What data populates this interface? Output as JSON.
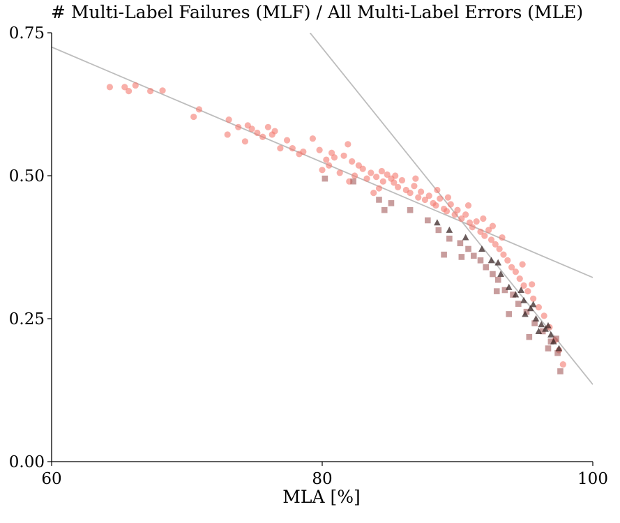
{
  "chart_data": {
    "type": "scatter",
    "title": "# Multi-Label Failures (MLF) / All Multi-Label Errors (MLE)",
    "xlabel": "MLA [%]",
    "ylabel": "",
    "xlim": [
      60,
      100
    ],
    "ylim": [
      0,
      0.75
    ],
    "xticks": [
      "60",
      "80",
      "100"
    ],
    "yticks": [
      "0.00",
      "0.25",
      "0.50",
      "0.75"
    ],
    "grid": false,
    "colors": {
      "circle": "#f47a70",
      "square": "#a35c5c",
      "triangle": "#3a2626",
      "fit_line": "#bdbdbd"
    },
    "fit_lines": [
      {
        "x": [
          60,
          100
        ],
        "y": [
          0.725,
          0.322
        ]
      },
      {
        "x": [
          79.1,
          100
        ],
        "y": [
          0.75,
          0.135
        ]
      }
    ],
    "series": [
      {
        "marker": "circle",
        "points": [
          [
            64.3,
            0.655
          ],
          [
            65.4,
            0.655
          ],
          [
            65.7,
            0.648
          ],
          [
            66.2,
            0.658
          ],
          [
            67.3,
            0.648
          ],
          [
            68.2,
            0.649
          ],
          [
            70.5,
            0.603
          ],
          [
            70.9,
            0.616
          ],
          [
            73.0,
            0.572
          ],
          [
            73.1,
            0.598
          ],
          [
            73.8,
            0.585
          ],
          [
            74.3,
            0.56
          ],
          [
            74.5,
            0.588
          ],
          [
            74.8,
            0.582
          ],
          [
            75.2,
            0.575
          ],
          [
            75.6,
            0.568
          ],
          [
            76.0,
            0.585
          ],
          [
            76.3,
            0.572
          ],
          [
            76.5,
            0.578
          ],
          [
            76.9,
            0.548
          ],
          [
            77.4,
            0.562
          ],
          [
            77.8,
            0.548
          ],
          [
            78.3,
            0.538
          ],
          [
            78.6,
            0.542
          ],
          [
            79.3,
            0.565
          ],
          [
            79.8,
            0.545
          ],
          [
            80.3,
            0.528
          ],
          [
            80.5,
            0.518
          ],
          [
            80.7,
            0.54
          ],
          [
            80.9,
            0.532
          ],
          [
            81.3,
            0.505
          ],
          [
            81.6,
            0.535
          ],
          [
            81.9,
            0.555
          ],
          [
            82.2,
            0.525
          ],
          [
            82.4,
            0.5
          ],
          [
            82.7,
            0.518
          ],
          [
            83.0,
            0.512
          ],
          [
            83.3,
            0.495
          ],
          [
            83.6,
            0.505
          ],
          [
            84.0,
            0.498
          ],
          [
            84.2,
            0.478
          ],
          [
            84.5,
            0.49
          ],
          [
            84.8,
            0.502
          ],
          [
            85.1,
            0.495
          ],
          [
            85.3,
            0.488
          ],
          [
            85.6,
            0.48
          ],
          [
            85.9,
            0.492
          ],
          [
            86.2,
            0.475
          ],
          [
            86.5,
            0.47
          ],
          [
            86.8,
            0.482
          ],
          [
            87.1,
            0.462
          ],
          [
            87.3,
            0.472
          ],
          [
            87.6,
            0.458
          ],
          [
            87.9,
            0.465
          ],
          [
            88.2,
            0.452
          ],
          [
            88.4,
            0.448
          ],
          [
            88.7,
            0.46
          ],
          [
            89.0,
            0.442
          ],
          [
            89.2,
            0.438
          ],
          [
            89.5,
            0.45
          ],
          [
            89.8,
            0.432
          ],
          [
            90.0,
            0.44
          ],
          [
            90.3,
            0.425
          ],
          [
            90.6,
            0.432
          ],
          [
            90.9,
            0.418
          ],
          [
            91.1,
            0.41
          ],
          [
            91.4,
            0.42
          ],
          [
            91.7,
            0.402
          ],
          [
            92.0,
            0.395
          ],
          [
            92.3,
            0.405
          ],
          [
            92.5,
            0.388
          ],
          [
            92.8,
            0.38
          ],
          [
            93.1,
            0.372
          ],
          [
            93.4,
            0.362
          ],
          [
            93.7,
            0.352
          ],
          [
            94.0,
            0.34
          ],
          [
            94.3,
            0.332
          ],
          [
            94.6,
            0.32
          ],
          [
            94.9,
            0.308
          ],
          [
            95.2,
            0.298
          ],
          [
            95.6,
            0.285
          ],
          [
            96.0,
            0.27
          ],
          [
            96.4,
            0.255
          ],
          [
            96.8,
            0.235
          ],
          [
            97.2,
            0.212
          ],
          [
            97.5,
            0.195
          ],
          [
            97.8,
            0.17
          ],
          [
            86.9,
            0.495
          ],
          [
            88.5,
            0.475
          ],
          [
            90.8,
            0.448
          ],
          [
            91.9,
            0.425
          ],
          [
            93.3,
            0.392
          ],
          [
            94.8,
            0.345
          ],
          [
            85.4,
            0.5
          ],
          [
            84.4,
            0.508
          ],
          [
            83.8,
            0.47
          ],
          [
            82.0,
            0.49
          ],
          [
            80.0,
            0.51
          ],
          [
            89.3,
            0.462
          ],
          [
            92.6,
            0.412
          ],
          [
            95.5,
            0.31
          ]
        ]
      },
      {
        "marker": "square",
        "points": [
          [
            80.2,
            0.495
          ],
          [
            82.3,
            0.49
          ],
          [
            84.2,
            0.458
          ],
          [
            84.6,
            0.44
          ],
          [
            85.1,
            0.452
          ],
          [
            86.5,
            0.44
          ],
          [
            87.8,
            0.422
          ],
          [
            88.6,
            0.405
          ],
          [
            89.4,
            0.39
          ],
          [
            90.2,
            0.382
          ],
          [
            90.8,
            0.372
          ],
          [
            91.2,
            0.36
          ],
          [
            91.7,
            0.352
          ],
          [
            92.1,
            0.34
          ],
          [
            92.6,
            0.328
          ],
          [
            93.0,
            0.318
          ],
          [
            93.5,
            0.3
          ],
          [
            94.1,
            0.292
          ],
          [
            94.5,
            0.276
          ],
          [
            95.1,
            0.262
          ],
          [
            95.7,
            0.242
          ],
          [
            96.3,
            0.228
          ],
          [
            96.9,
            0.21
          ],
          [
            97.4,
            0.19
          ],
          [
            97.6,
            0.158
          ],
          [
            97.3,
            0.215
          ],
          [
            92.9,
            0.298
          ],
          [
            90.3,
            0.358
          ],
          [
            89.0,
            0.362
          ],
          [
            93.8,
            0.258
          ],
          [
            95.3,
            0.218
          ],
          [
            96.7,
            0.198
          ]
        ]
      },
      {
        "marker": "triangle",
        "points": [
          [
            88.5,
            0.418
          ],
          [
            89.4,
            0.405
          ],
          [
            90.6,
            0.392
          ],
          [
            91.8,
            0.372
          ],
          [
            92.5,
            0.352
          ],
          [
            93.2,
            0.328
          ],
          [
            93.8,
            0.305
          ],
          [
            94.3,
            0.292
          ],
          [
            94.9,
            0.282
          ],
          [
            95.4,
            0.268
          ],
          [
            95.8,
            0.25
          ],
          [
            96.2,
            0.24
          ],
          [
            96.5,
            0.232
          ],
          [
            96.9,
            0.222
          ],
          [
            97.1,
            0.21
          ],
          [
            97.5,
            0.198
          ],
          [
            96.0,
            0.228
          ],
          [
            95.0,
            0.258
          ],
          [
            96.7,
            0.238
          ],
          [
            94.7,
            0.3
          ],
          [
            95.6,
            0.275
          ],
          [
            93.0,
            0.348
          ]
        ]
      }
    ]
  }
}
